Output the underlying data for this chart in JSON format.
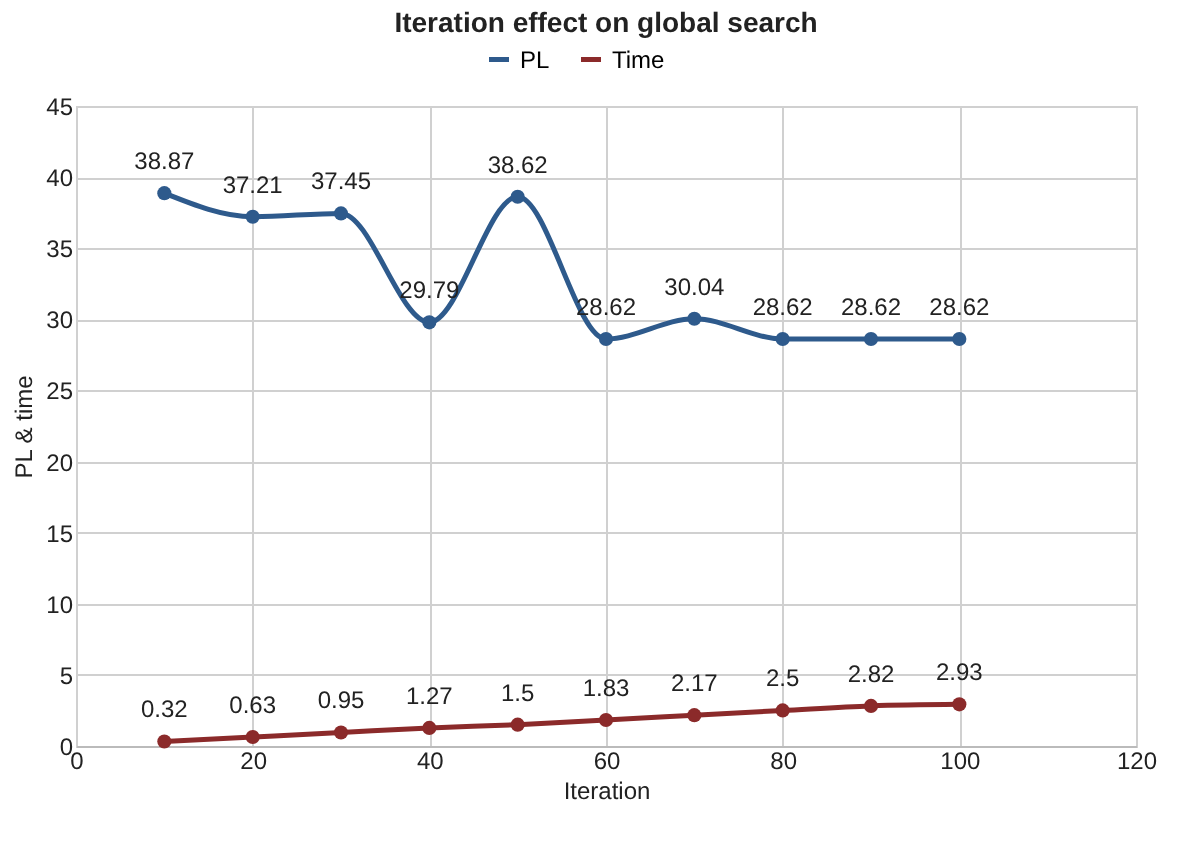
{
  "chart_data": {
    "type": "line",
    "title": "Iteration effect on global search",
    "xlabel": "Iteration",
    "ylabel": "PL & time",
    "x": [
      10,
      20,
      30,
      40,
      50,
      60,
      70,
      80,
      90,
      100
    ],
    "series": [
      {
        "name": "PL",
        "color": "#2e5a8c",
        "values": [
          38.87,
          37.21,
          37.45,
          29.79,
          38.62,
          28.62,
          30.04,
          28.62,
          28.62,
          28.62
        ]
      },
      {
        "name": "Time",
        "color": "#8b2a2a",
        "values": [
          0.32,
          0.63,
          0.95,
          1.27,
          1.5,
          1.83,
          2.17,
          2.5,
          2.82,
          2.93
        ]
      }
    ],
    "xlim": [
      0,
      120
    ],
    "xticks": [
      0,
      20,
      40,
      60,
      80,
      100,
      120
    ],
    "ylim": [
      0,
      45
    ],
    "yticks": [
      0,
      5,
      10,
      15,
      20,
      25,
      30,
      35,
      40,
      45
    ],
    "grid": true,
    "legend": "top",
    "marker": "circle",
    "line_style": "solid",
    "data_labels": true
  }
}
